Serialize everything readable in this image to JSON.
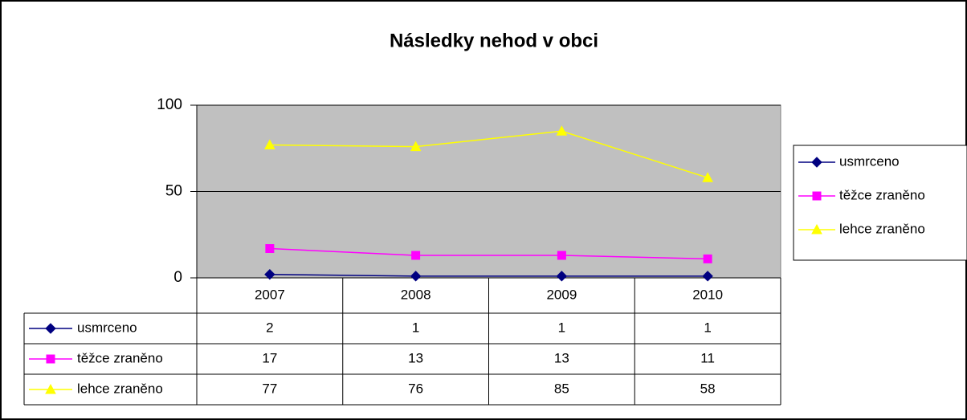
{
  "chart_data": {
    "type": "line",
    "title": "Následky nehod v obci",
    "categories": [
      "2007",
      "2008",
      "2009",
      "2010"
    ],
    "series": [
      {
        "name": "usmrceno",
        "color": "#000080",
        "marker": "diamond",
        "values": [
          2,
          1,
          1,
          1
        ]
      },
      {
        "name": "těžce zraněno",
        "color": "#ff00ff",
        "marker": "square",
        "values": [
          17,
          13,
          13,
          11
        ]
      },
      {
        "name": "lehce zraněno",
        "color": "#ffff00",
        "marker": "triangle",
        "values": [
          77,
          76,
          85,
          58
        ]
      }
    ],
    "ylim": [
      0,
      100
    ],
    "yticks": [
      0,
      50,
      100
    ],
    "grid": true,
    "legend": "right",
    "data_table": true
  }
}
